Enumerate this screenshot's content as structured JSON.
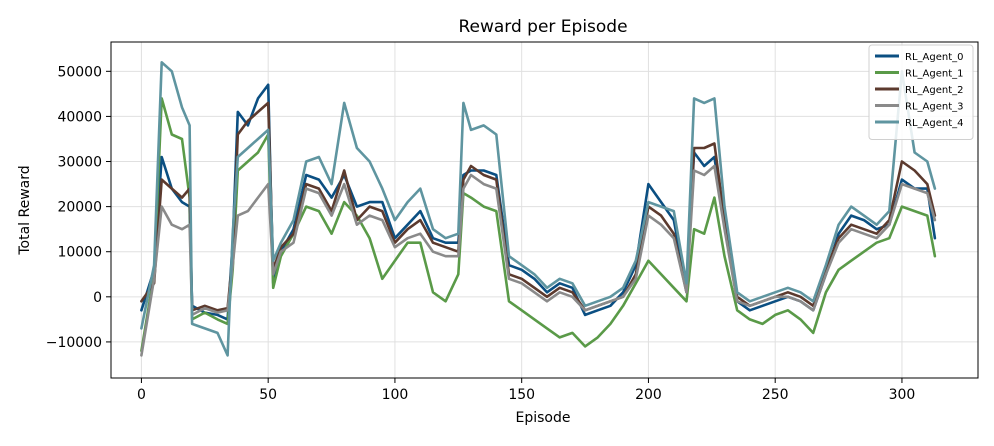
{
  "chart_data": {
    "type": "line",
    "title": "Reward per Episode",
    "xlabel": "Episode",
    "ylabel": "Total Reward",
    "xlim": [
      -12,
      330
    ],
    "ylim": [
      -18000,
      56500
    ],
    "xticks": [
      0,
      50,
      100,
      150,
      200,
      250,
      300
    ],
    "xtick_labels": [
      "0",
      "50",
      "100",
      "150",
      "200",
      "250",
      "300"
    ],
    "yticks": [
      -10000,
      0,
      10000,
      20000,
      30000,
      40000,
      50000
    ],
    "ytick_labels": [
      "−10000",
      "0",
      "10000",
      "20000",
      "30000",
      "40000",
      "50000"
    ],
    "grid": true,
    "legend_position": "top-right",
    "x": [
      0,
      5,
      8,
      12,
      16,
      19,
      20,
      25,
      30,
      34,
      36,
      38,
      42,
      46,
      50,
      52,
      55,
      60,
      65,
      70,
      75,
      80,
      85,
      90,
      95,
      100,
      105,
      110,
      115,
      120,
      125,
      127,
      130,
      135,
      140,
      145,
      150,
      155,
      160,
      165,
      170,
      175,
      180,
      185,
      190,
      195,
      200,
      205,
      210,
      215,
      218,
      222,
      226,
      230,
      235,
      240,
      245,
      250,
      255,
      260,
      265,
      270,
      275,
      280,
      285,
      290,
      295,
      300,
      305,
      310,
      313
    ],
    "series": [
      {
        "name": "RL_Agent_0",
        "color": "#0b4f82",
        "values": [
          -3000,
          6000,
          31000,
          24000,
          21000,
          20000,
          -2000,
          -3500,
          -4000,
          -5000,
          12000,
          41000,
          38000,
          44000,
          47000,
          3000,
          10000,
          15000,
          27000,
          26000,
          22000,
          27000,
          20000,
          21000,
          21000,
          13000,
          16000,
          19000,
          13000,
          12000,
          12000,
          27000,
          28000,
          28000,
          27000,
          7000,
          6000,
          4000,
          1000,
          3000,
          2000,
          -4000,
          -3000,
          -2000,
          1000,
          7000,
          25000,
          21000,
          17000,
          2000,
          32000,
          29000,
          31000,
          16000,
          -1000,
          -3000,
          -2000,
          -1000,
          0,
          -1000,
          -3000,
          5000,
          14000,
          18000,
          17000,
          15000,
          16000,
          26000,
          24000,
          24000,
          13000
        ]
      },
      {
        "name": "RL_Agent_1",
        "color": "#5a9a48",
        "values": [
          -12000,
          5000,
          44000,
          36000,
          35000,
          22000,
          -5000,
          -3500,
          -5000,
          -6000,
          6000,
          28000,
          30000,
          32000,
          36000,
          2000,
          9000,
          14000,
          20000,
          19000,
          14000,
          21000,
          18000,
          13000,
          4000,
          8000,
          12000,
          12000,
          1000,
          -1000,
          5000,
          23000,
          22000,
          20000,
          19000,
          -1000,
          -3000,
          -5000,
          -7000,
          -9000,
          -8000,
          -11000,
          -9000,
          -6000,
          -2000,
          3000,
          8000,
          5000,
          2000,
          -1000,
          15000,
          14000,
          22000,
          9000,
          -3000,
          -5000,
          -6000,
          -4000,
          -3000,
          -5000,
          -8000,
          1000,
          6000,
          8000,
          10000,
          12000,
          13000,
          20000,
          19000,
          18000,
          9000
        ]
      },
      {
        "name": "RL_Agent_2",
        "color": "#5c3a2e",
        "values": [
          -1000,
          3000,
          26000,
          24000,
          22000,
          24000,
          -3000,
          -2000,
          -3000,
          -2500,
          9000,
          36000,
          39000,
          41000,
          43000,
          6000,
          11000,
          14000,
          25000,
          24000,
          19000,
          28000,
          17000,
          20000,
          19000,
          12000,
          15000,
          17000,
          12000,
          11000,
          10000,
          26000,
          29000,
          27000,
          26000,
          5000,
          4000,
          2000,
          0,
          2000,
          1000,
          -3000,
          -2000,
          -1000,
          0,
          5000,
          20000,
          18000,
          14000,
          1000,
          33000,
          33000,
          34000,
          17000,
          0,
          -2000,
          -1000,
          0,
          1000,
          0,
          -2000,
          6000,
          13000,
          16000,
          15000,
          14000,
          17000,
          30000,
          28000,
          25000,
          18000
        ]
      },
      {
        "name": "RL_Agent_3",
        "color": "#8a8a8a",
        "values": [
          -13000,
          4000,
          20000,
          16000,
          15000,
          16000,
          -4000,
          -2500,
          -3500,
          -3000,
          7000,
          18000,
          19000,
          22000,
          25000,
          5000,
          10000,
          12000,
          24000,
          23000,
          18000,
          25000,
          16000,
          18000,
          17000,
          11000,
          13000,
          14000,
          10000,
          9000,
          9000,
          24000,
          27000,
          25000,
          24000,
          4000,
          3000,
          1000,
          -1000,
          1000,
          0,
          -3000,
          -2000,
          -1000,
          0,
          4000,
          18000,
          16000,
          13000,
          1000,
          28000,
          27000,
          29000,
          15000,
          -1000,
          -2000,
          -1000,
          0,
          0,
          -1000,
          -3000,
          5000,
          12000,
          15000,
          14000,
          13000,
          16000,
          25000,
          24000,
          23000,
          17000
        ]
      },
      {
        "name": "RL_Agent_4",
        "color": "#5f95a0",
        "values": [
          -7000,
          7000,
          52000,
          50000,
          42000,
          38000,
          -6000,
          -7000,
          -8000,
          -13000,
          14000,
          31000,
          33000,
          35000,
          37000,
          8000,
          12000,
          17000,
          30000,
          31000,
          25000,
          43000,
          33000,
          30000,
          24000,
          17000,
          21000,
          24000,
          15000,
          13000,
          14000,
          43000,
          37000,
          38000,
          36000,
          9000,
          7000,
          5000,
          2000,
          4000,
          3000,
          -2000,
          -1000,
          0,
          2000,
          8000,
          21000,
          20000,
          19000,
          3000,
          44000,
          43000,
          44000,
          20000,
          1000,
          -1000,
          0,
          1000,
          2000,
          1000,
          -1000,
          7000,
          16000,
          20000,
          18000,
          16000,
          19000,
          50000,
          32000,
          30000,
          24000
        ]
      }
    ]
  }
}
